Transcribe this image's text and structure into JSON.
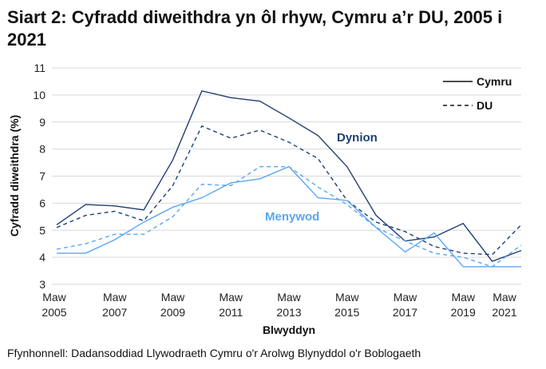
{
  "title": "Siart 2: Cyfradd diweithdra yn ôl rhyw, Cymru a’r DU, 2005 i 2021",
  "source": "Ffynhonnell: Dadansoddiad Llywodraeth Cymru o'r Arolwg Blynyddol o'r Boblogaeth",
  "chart_data": {
    "type": "line",
    "xlabel": "Blwyddyn",
    "ylabel": "Cyfradd diweithdra (%)",
    "ylim": [
      3,
      11
    ],
    "yticks": [
      3,
      4,
      5,
      6,
      7,
      8,
      9,
      10,
      11
    ],
    "x": [
      2005,
      2006,
      2007,
      2008,
      2009,
      2010,
      2011,
      2012,
      2013,
      2014,
      2015,
      2016,
      2017,
      2018,
      2019,
      2020,
      2021
    ],
    "xticks": [
      {
        "year": 2005,
        "line1": "Maw",
        "line2": "2005"
      },
      {
        "year": 2007,
        "line1": "Maw",
        "line2": "2007"
      },
      {
        "year": 2009,
        "line1": "Maw",
        "line2": "2009"
      },
      {
        "year": 2011,
        "line1": "Maw",
        "line2": "2011"
      },
      {
        "year": 2013,
        "line1": "Maw",
        "line2": "2013"
      },
      {
        "year": 2015,
        "line1": "Maw",
        "line2": "2015"
      },
      {
        "year": 2017,
        "line1": "Maw",
        "line2": "2017"
      },
      {
        "year": 2019,
        "line1": "Maw",
        "line2": "2019"
      },
      {
        "year": 2021,
        "line1": "Maw",
        "line2": "2021"
      }
    ],
    "grid": true,
    "legend": {
      "position": "top-right",
      "entries": [
        {
          "label": "Cymru",
          "style": "solid"
        },
        {
          "label": "DU",
          "style": "dashed"
        }
      ]
    },
    "annotations": [
      {
        "text": "Dynion",
        "color": "#1f3f73"
      },
      {
        "text": "Menywod",
        "color": "#5aa6f5"
      }
    ],
    "series": [
      {
        "group": "Dynion",
        "area": "Cymru",
        "color": "#1f3f73",
        "dash": false,
        "values": [
          5.2,
          5.95,
          5.9,
          5.75,
          7.6,
          10.15,
          9.9,
          9.77,
          9.15,
          8.5,
          7.35,
          5.55,
          4.6,
          4.75,
          5.25,
          3.85,
          4.25
        ]
      },
      {
        "group": "Dynion",
        "area": "DU",
        "color": "#1f3f73",
        "dash": true,
        "values": [
          5.1,
          5.55,
          5.7,
          5.35,
          6.65,
          8.85,
          8.4,
          8.7,
          8.25,
          7.65,
          6.1,
          5.3,
          4.95,
          4.4,
          4.15,
          4.1,
          5.2
        ]
      },
      {
        "group": "Menywod",
        "area": "Cymru",
        "color": "#5aa6f5",
        "dash": false,
        "values": [
          4.15,
          4.15,
          4.65,
          5.3,
          5.85,
          6.2,
          6.75,
          6.9,
          7.35,
          6.2,
          6.1,
          5.1,
          4.2,
          4.9,
          3.65,
          3.65,
          3.65
        ]
      },
      {
        "group": "Menywod",
        "area": "DU",
        "color": "#5aa6f5",
        "dash": true,
        "values": [
          4.3,
          4.5,
          4.85,
          4.85,
          5.5,
          6.7,
          6.65,
          7.35,
          7.35,
          6.6,
          5.95,
          5.1,
          4.6,
          4.15,
          4.0,
          3.65,
          4.45
        ]
      }
    ]
  }
}
